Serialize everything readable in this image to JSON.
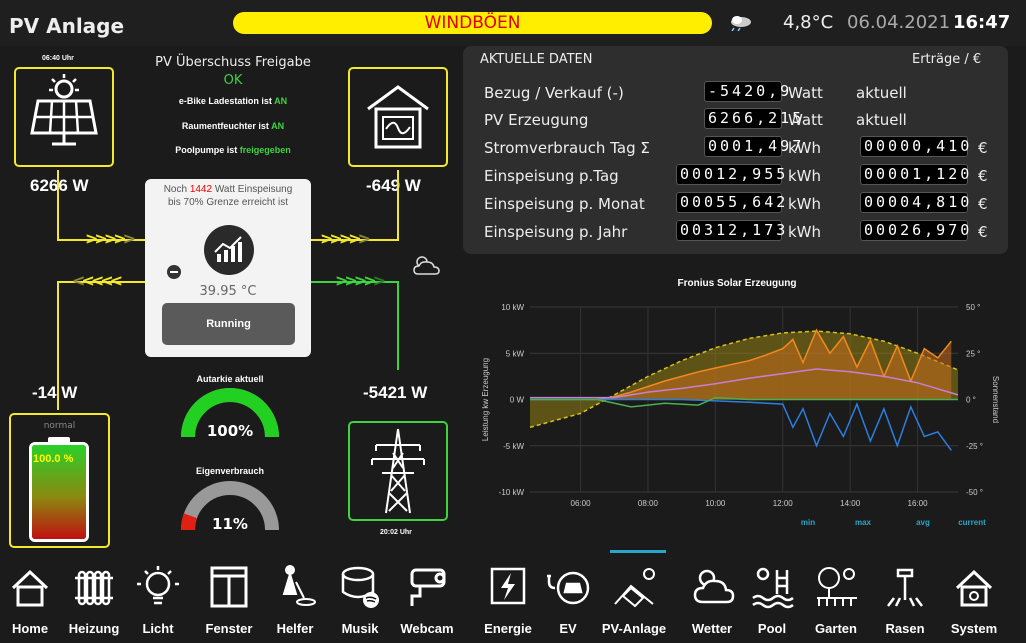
{
  "header": {
    "title": "PV Anlage",
    "banner": "WINDBÖEN",
    "temperature": "4,8°C",
    "date": "06.04.2021",
    "time": "16:47"
  },
  "pv": {
    "time": "06:40 Uhr",
    "power": "6266 W"
  },
  "status": {
    "title": "PV Überschuss Freigabe",
    "state": "OK",
    "lines": [
      {
        "prefix": "e-Bike Ladestation ist ",
        "value": "AN"
      },
      {
        "prefix": "Raumentfeuchter ist ",
        "value": "AN"
      },
      {
        "prefix": "Poolpumpe ist ",
        "value": "freigegeben"
      }
    ]
  },
  "house": {
    "power": "-649 W"
  },
  "inverter": {
    "note_prefix": "Noch ",
    "note_value": "1442",
    "note_suffix": " Watt Einspeisung",
    "note_line2": "bis 70% Grenze erreicht ist",
    "temperature": "39.95 °C",
    "status": "Running"
  },
  "battery": {
    "power": "-14 W",
    "mode": "normal",
    "level_text": "100.0 %",
    "level": 1.0
  },
  "grid": {
    "power": "-5421 W",
    "time": "20:02 Uhr"
  },
  "gauges": {
    "autarkie_label": "Autarkie aktuell",
    "autarkie_value": "100%",
    "autarkie_level": 1.0,
    "eigen_label": "Eigenverbrauch",
    "eigen_value": "11%",
    "eigen_level": 0.11
  },
  "data_panel": {
    "title": "AKTUELLE DATEN",
    "right_title": "Erträge / €",
    "rows": [
      {
        "label": "Bezug / Verkauf (-)",
        "value": "-5420,9",
        "unit": "Watt",
        "right": "aktuell"
      },
      {
        "label": "PV Erzeugung",
        "value": "6266,215",
        "unit": "Watt",
        "right": "aktuell"
      },
      {
        "label": "Stromverbrauch Tag Σ",
        "value": "0001,497",
        "unit": "kWh",
        "right": "00000,410",
        "currency": "€"
      },
      {
        "label": "Einspeisung p.Tag",
        "value": "00012,955",
        "unit": "kWh",
        "right": "00001,120",
        "currency": "€"
      },
      {
        "label": "Einspeisung p. Monat",
        "value": "00055,642",
        "unit": "kWh",
        "right": "00004,810",
        "currency": "€"
      },
      {
        "label": "Einspeisung p. Jahr",
        "value": "00312,173",
        "unit": "kWh",
        "right": "00026,970",
        "currency": "€"
      }
    ]
  },
  "chart_data": {
    "type": "line",
    "title": "Fronius Solar Erzeugung",
    "ylabel": "Leistung kw Erzeugung",
    "y2label": "Sonnenstand",
    "ylim": [
      -10,
      10
    ],
    "y_ticks": [
      "10 kW",
      "5 kW",
      "0 W",
      "-5 kW",
      "-10 kW"
    ],
    "y2_ticks": [
      "50 °",
      "25 °",
      "0 °",
      "-25 °",
      "-50 °"
    ],
    "x_ticks": [
      "06:00",
      "08:00",
      "10:00",
      "12:00",
      "14:00",
      "16:00"
    ],
    "x_hours": [
      4.5,
      17.2
    ],
    "legend": [
      "min",
      "max",
      "avg",
      "current"
    ],
    "series": [
      {
        "name": "sun",
        "color": "#d9c21a",
        "x": [
          4.5,
          6,
          7,
          8,
          9,
          10,
          11,
          12,
          13,
          14,
          15,
          16,
          17.2
        ],
        "values": [
          -3,
          -1.5,
          0.5,
          2.5,
          4.2,
          5.6,
          6.6,
          7.2,
          7.4,
          7.1,
          6.3,
          5.0,
          3.2
        ]
      },
      {
        "name": "pv",
        "color": "#f0891e",
        "x": [
          6.5,
          7,
          7.5,
          8,
          8.5,
          9,
          9.5,
          10,
          10.5,
          11,
          11.5,
          12,
          12.3,
          12.6,
          13,
          13.4,
          13.8,
          14.2,
          14.6,
          15,
          15.4,
          15.8,
          16.2,
          16.6,
          17
        ],
        "values": [
          0,
          0.3,
          0.8,
          1.4,
          2,
          2.5,
          3,
          3.4,
          3.8,
          4.2,
          4.8,
          5.5,
          6.5,
          4,
          7.5,
          5,
          6.8,
          3.5,
          6.4,
          2.5,
          5.8,
          2,
          5.5,
          4.5,
          6.3
        ]
      },
      {
        "name": "load",
        "color": "#c77fd1",
        "x": [
          4.5,
          7,
          8,
          9,
          10,
          11,
          12,
          13,
          14,
          15,
          16,
          17.2
        ],
        "values": [
          0.2,
          0.2,
          0.8,
          1.2,
          1.7,
          2.3,
          2.8,
          3.3,
          3.0,
          2.5,
          1.8,
          0.5
        ]
      },
      {
        "name": "grid",
        "color": "#2b7fe0",
        "x": [
          4.5,
          7,
          9,
          11,
          12,
          12.3,
          12.6,
          13,
          13.4,
          13.8,
          14.2,
          14.6,
          15,
          15.4,
          15.8,
          16.2,
          16.6,
          17
        ],
        "values": [
          0,
          0,
          0,
          -0.3,
          -0.5,
          -3,
          -1,
          -5,
          -1.5,
          -4,
          -0.5,
          -4.5,
          -1,
          -5,
          -0.8,
          -4,
          -3.5,
          -5.5
        ]
      },
      {
        "name": "battery",
        "color": "#4caf50",
        "x": [
          4.5,
          6.5,
          7.5,
          8.5,
          9.5,
          10,
          11,
          12,
          14,
          17.2
        ],
        "values": [
          0,
          0,
          -0.8,
          -0.4,
          -0.6,
          0.2,
          0,
          0,
          0,
          0
        ]
      }
    ]
  },
  "nav": {
    "items": [
      {
        "label": "Home",
        "icon": "house-icon"
      },
      {
        "label": "Heizung",
        "icon": "radiator-icon"
      },
      {
        "label": "Licht",
        "icon": "bulb-icon"
      },
      {
        "label": "Fenster",
        "icon": "window-icon"
      },
      {
        "label": "Helfer",
        "icon": "vacuum-icon"
      },
      {
        "label": "Musik",
        "icon": "speaker-icon"
      },
      {
        "label": "Webcam",
        "icon": "camera-icon"
      },
      {
        "label": "Energie",
        "icon": "bolt-icon"
      },
      {
        "label": "EV",
        "icon": "car-plug-icon"
      },
      {
        "label": "PV-Anlage",
        "icon": "solar-roof-icon"
      },
      {
        "label": "Wetter",
        "icon": "cloud-sun-icon"
      },
      {
        "label": "Pool",
        "icon": "pool-icon"
      },
      {
        "label": "Garten",
        "icon": "garden-icon"
      },
      {
        "label": "Rasen",
        "icon": "sprinkler-icon"
      },
      {
        "label": "System",
        "icon": "system-house-icon"
      }
    ]
  }
}
